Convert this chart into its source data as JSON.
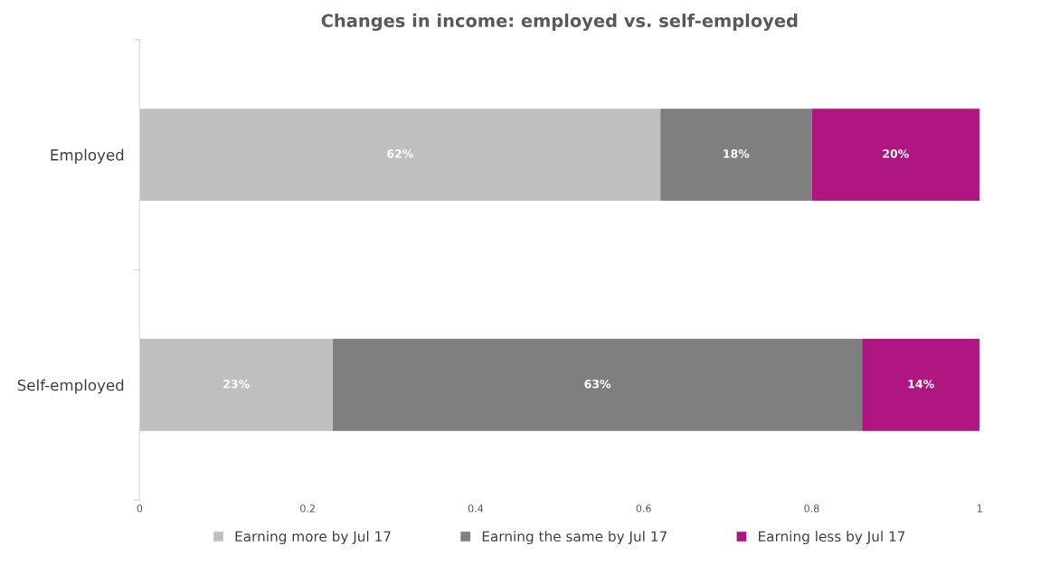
{
  "chart_data": {
    "type": "bar",
    "orientation": "horizontal",
    "stacked": true,
    "title": "Changes in income: employed vs. self-employed",
    "categories": [
      "Employed",
      "Self-employed"
    ],
    "series": [
      {
        "name": "Earning more by Jul 17",
        "color": "#bfbfbf",
        "values": [
          0.62,
          0.23
        ],
        "value_labels": [
          "62%",
          "23%"
        ]
      },
      {
        "name": "Earning the same by Jul 17",
        "color": "#7f7f7f",
        "values": [
          0.18,
          0.63
        ],
        "value_labels": [
          "18%",
          "63%"
        ]
      },
      {
        "name": "Earning less by Jul 17",
        "color": "#b01682",
        "values": [
          0.2,
          0.14
        ],
        "value_labels": [
          "20%",
          "14%"
        ]
      }
    ],
    "xlim": [
      0,
      1
    ],
    "xticks": [
      0,
      0.2,
      0.4,
      0.6,
      0.8,
      1
    ],
    "grid": false,
    "legend": "bottom"
  }
}
